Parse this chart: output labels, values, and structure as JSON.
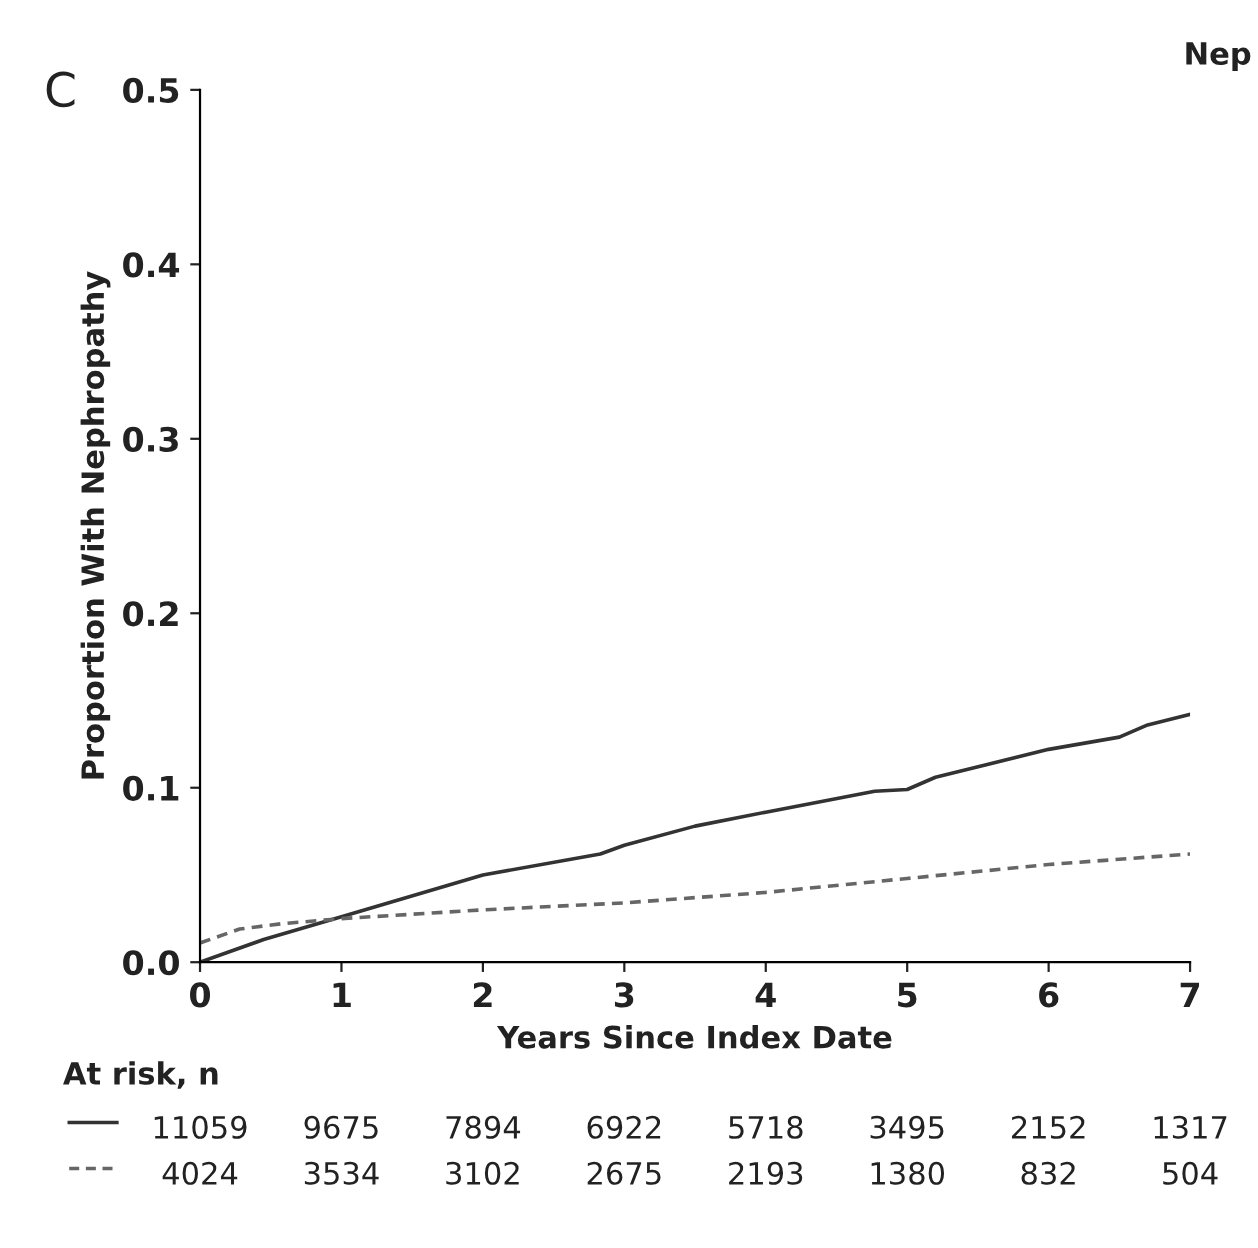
{
  "chart_data": {
    "type": "line",
    "title": "Nep",
    "xlabel": "Years Since Index Date",
    "ylabel": "Proportion With Nephropathy",
    "annotations": [
      "C",
      "At risk, n",
      "11059",
      "9675",
      "7894",
      "6922",
      "5718",
      "3495",
      "2152",
      "1317",
      "4024",
      "3534",
      "3102",
      "2675",
      "2193",
      "1380",
      "832",
      "504"
    ],
    "series": [
      {
        "color": "#333333",
        "line_style": "solid",
        "x": [
          0,
          0.45,
          1,
          2,
          2.83,
          3,
          3.5,
          4,
          4.77,
          5,
          5.2,
          6,
          6.5,
          6.7,
          7
        ],
        "values": [
          0,
          0.013,
          0.026,
          0.05,
          0.062,
          0.067,
          0.078,
          0.086,
          0.098,
          0.099,
          0.106,
          0.122,
          0.129,
          0.136,
          0.142
        ]
      },
      {
        "color": "#666666",
        "line_style": "dashed",
        "x": [
          0,
          0.28,
          0.57,
          1,
          2,
          3,
          4,
          5,
          6,
          7
        ],
        "values": [
          0.011,
          0.019,
          0.022,
          0.025,
          0.03,
          0.034,
          0.04,
          0.048,
          0.056,
          0.062
        ]
      }
    ],
    "xlim": [
      0,
      7
    ],
    "xticks": [
      0,
      1,
      2,
      3,
      4,
      5,
      6,
      7
    ],
    "ylim": [
      0,
      0.5
    ],
    "yticks": [
      {
        "value": 0,
        "label": "0.0"
      },
      {
        "value": 0.1,
        "label": "0.1"
      },
      {
        "value": 0.2,
        "label": "0.2"
      },
      {
        "value": 0.3,
        "label": "0.3"
      },
      {
        "value": 0.4,
        "label": "0.4"
      },
      {
        "value": 0.5,
        "label": "0.5"
      }
    ],
    "grid": false,
    "legend": false
  }
}
